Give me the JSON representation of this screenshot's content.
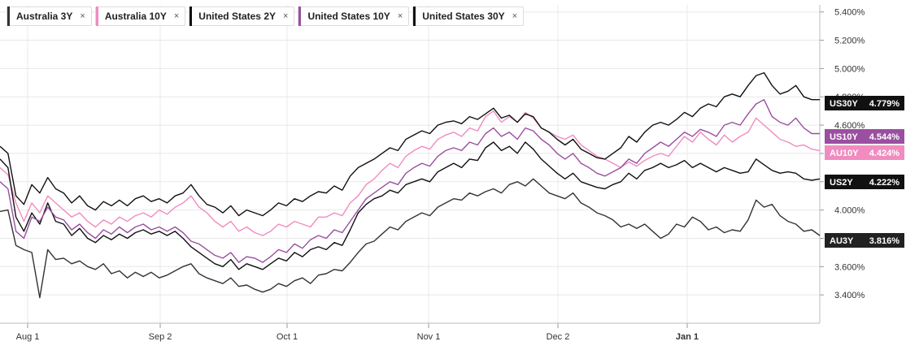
{
  "legend": [
    {
      "label": "Australia 3Y",
      "color": "#333333"
    },
    {
      "label": "Australia 10Y",
      "color": "#f08cc0"
    },
    {
      "label": "United States 2Y",
      "color": "#111111"
    },
    {
      "label": "United States 10Y",
      "color": "#9a4fa0"
    },
    {
      "label": "United States 30Y",
      "color": "#111111"
    }
  ],
  "close_glyph": "×",
  "chart_data": {
    "type": "line",
    "x_ticks": [
      "Aug 1",
      "Sep 2",
      "Oct 1",
      "Nov 1",
      "Dec 2",
      "Jan 1"
    ],
    "y_ticks": [
      "3.400%",
      "3.600%",
      "3.800%",
      "4.000%",
      "4.200%",
      "4.400%",
      "4.600%",
      "4.800%",
      "5.000%",
      "5.200%",
      "5.400%"
    ],
    "ylim": [
      3.2,
      5.45
    ],
    "grid": true,
    "axis_position": "right",
    "series": [
      {
        "name": "Australia 3Y",
        "end_tag": "AU3Y",
        "end_value": "3.816%",
        "tag_color": "#222222",
        "line_color": "#333333",
        "values": [
          3.99,
          4.0,
          3.75,
          3.72,
          3.7,
          3.38,
          3.72,
          3.65,
          3.66,
          3.62,
          3.64,
          3.6,
          3.58,
          3.62,
          3.55,
          3.57,
          3.52,
          3.56,
          3.53,
          3.56,
          3.52,
          3.54,
          3.57,
          3.6,
          3.62,
          3.55,
          3.52,
          3.5,
          3.48,
          3.52,
          3.46,
          3.47,
          3.44,
          3.42,
          3.44,
          3.48,
          3.46,
          3.5,
          3.52,
          3.48,
          3.54,
          3.55,
          3.58,
          3.57,
          3.63,
          3.7,
          3.76,
          3.78,
          3.83,
          3.88,
          3.86,
          3.92,
          3.95,
          3.98,
          3.96,
          4.02,
          4.05,
          4.08,
          4.07,
          4.12,
          4.1,
          4.13,
          4.15,
          4.12,
          4.18,
          4.2,
          4.17,
          4.22,
          4.17,
          4.12,
          4.1,
          4.08,
          4.12,
          4.05,
          4.02,
          3.98,
          3.96,
          3.93,
          3.88,
          3.9,
          3.87,
          3.9,
          3.85,
          3.8,
          3.83,
          3.9,
          3.88,
          3.95,
          3.92,
          3.86,
          3.88,
          3.84,
          3.86,
          3.85,
          3.93,
          4.07,
          4.02,
          4.04,
          3.96,
          3.92,
          3.9,
          3.85,
          3.86,
          3.82
        ]
      },
      {
        "name": "Australia 10Y",
        "end_tag": "AU10Y",
        "end_value": "4.424%",
        "tag_color": "#f08cc0",
        "line_color": "#f08cc0",
        "values": [
          4.3,
          4.25,
          4.05,
          3.92,
          4.05,
          3.98,
          4.1,
          4.05,
          4.0,
          3.95,
          3.98,
          3.92,
          3.88,
          3.93,
          3.9,
          3.95,
          3.92,
          3.96,
          3.98,
          3.95,
          4.0,
          3.97,
          4.02,
          4.05,
          4.1,
          4.02,
          3.98,
          3.92,
          3.88,
          3.92,
          3.85,
          3.88,
          3.84,
          3.82,
          3.85,
          3.9,
          3.88,
          3.92,
          3.9,
          3.88,
          3.95,
          3.95,
          3.98,
          3.96,
          4.05,
          4.1,
          4.18,
          4.22,
          4.28,
          4.33,
          4.3,
          4.38,
          4.42,
          4.45,
          4.43,
          4.5,
          4.53,
          4.55,
          4.52,
          4.58,
          4.56,
          4.66,
          4.7,
          4.62,
          4.66,
          4.62,
          4.69,
          4.65,
          4.58,
          4.55,
          4.52,
          4.5,
          4.53,
          4.46,
          4.42,
          4.38,
          4.36,
          4.33,
          4.3,
          4.34,
          4.31,
          4.35,
          4.38,
          4.4,
          4.38,
          4.45,
          4.52,
          4.48,
          4.55,
          4.5,
          4.46,
          4.53,
          4.48,
          4.52,
          4.55,
          4.65,
          4.6,
          4.55,
          4.5,
          4.48,
          4.45,
          4.46,
          4.43,
          4.42
        ]
      },
      {
        "name": "United States 2Y",
        "end_tag": "US2Y",
        "end_value": "4.222%",
        "tag_color": "#111111",
        "line_color": "#111111",
        "values": [
          4.36,
          4.3,
          3.95,
          3.85,
          3.98,
          3.9,
          4.05,
          3.92,
          3.9,
          3.82,
          3.87,
          3.8,
          3.77,
          3.82,
          3.79,
          3.83,
          3.8,
          3.84,
          3.86,
          3.83,
          3.85,
          3.82,
          3.85,
          3.8,
          3.74,
          3.7,
          3.66,
          3.62,
          3.6,
          3.65,
          3.58,
          3.62,
          3.6,
          3.58,
          3.62,
          3.66,
          3.64,
          3.7,
          3.67,
          3.72,
          3.74,
          3.72,
          3.77,
          3.75,
          3.86,
          3.98,
          4.04,
          4.08,
          4.1,
          4.14,
          4.12,
          4.18,
          4.2,
          4.22,
          4.2,
          4.27,
          4.3,
          4.33,
          4.3,
          4.36,
          4.35,
          4.44,
          4.48,
          4.42,
          4.45,
          4.4,
          4.48,
          4.43,
          4.36,
          4.31,
          4.26,
          4.22,
          4.26,
          4.2,
          4.18,
          4.16,
          4.15,
          4.18,
          4.2,
          4.26,
          4.22,
          4.28,
          4.3,
          4.33,
          4.3,
          4.32,
          4.35,
          4.3,
          4.33,
          4.3,
          4.27,
          4.3,
          4.28,
          4.26,
          4.27,
          4.36,
          4.32,
          4.28,
          4.26,
          4.27,
          4.26,
          4.22,
          4.21,
          4.22
        ]
      },
      {
        "name": "United States 10Y",
        "end_tag": "US10Y",
        "end_value": "4.544%",
        "tag_color": "#9a4fa0",
        "line_color": "#9a4fa0",
        "values": [
          4.2,
          4.15,
          3.85,
          3.8,
          3.95,
          3.92,
          4.02,
          3.95,
          3.93,
          3.86,
          3.9,
          3.84,
          3.8,
          3.86,
          3.83,
          3.88,
          3.84,
          3.88,
          3.9,
          3.86,
          3.88,
          3.85,
          3.88,
          3.84,
          3.78,
          3.76,
          3.72,
          3.68,
          3.66,
          3.7,
          3.63,
          3.67,
          3.66,
          3.63,
          3.67,
          3.72,
          3.7,
          3.76,
          3.73,
          3.79,
          3.82,
          3.8,
          3.86,
          3.84,
          3.92,
          4.0,
          4.08,
          4.12,
          4.16,
          4.2,
          4.18,
          4.26,
          4.3,
          4.33,
          4.31,
          4.38,
          4.42,
          4.44,
          4.42,
          4.48,
          4.46,
          4.54,
          4.58,
          4.52,
          4.55,
          4.5,
          4.58,
          4.56,
          4.5,
          4.46,
          4.4,
          4.36,
          4.4,
          4.33,
          4.3,
          4.26,
          4.24,
          4.27,
          4.3,
          4.36,
          4.33,
          4.4,
          4.44,
          4.48,
          4.45,
          4.5,
          4.55,
          4.52,
          4.57,
          4.55,
          4.52,
          4.6,
          4.62,
          4.6,
          4.68,
          4.75,
          4.78,
          4.66,
          4.62,
          4.6,
          4.65,
          4.58,
          4.54,
          4.54
        ]
      },
      {
        "name": "United States 30Y",
        "end_tag": "US30Y",
        "end_value": "4.779%",
        "tag_color": "#111111",
        "line_color": "#111111",
        "values": [
          4.45,
          4.4,
          4.1,
          4.04,
          4.18,
          4.12,
          4.23,
          4.15,
          4.12,
          4.05,
          4.1,
          4.03,
          4.0,
          4.06,
          4.03,
          4.07,
          4.03,
          4.08,
          4.1,
          4.06,
          4.08,
          4.05,
          4.1,
          4.12,
          4.18,
          4.1,
          4.04,
          4.02,
          3.98,
          4.03,
          3.96,
          4.0,
          3.98,
          3.96,
          4.0,
          4.05,
          4.03,
          4.08,
          4.06,
          4.1,
          4.13,
          4.12,
          4.17,
          4.14,
          4.24,
          4.3,
          4.33,
          4.36,
          4.4,
          4.44,
          4.42,
          4.5,
          4.53,
          4.56,
          4.54,
          4.6,
          4.62,
          4.63,
          4.61,
          4.66,
          4.64,
          4.68,
          4.72,
          4.65,
          4.67,
          4.62,
          4.68,
          4.66,
          4.58,
          4.55,
          4.5,
          4.46,
          4.5,
          4.43,
          4.4,
          4.37,
          4.36,
          4.4,
          4.44,
          4.52,
          4.48,
          4.55,
          4.6,
          4.62,
          4.6,
          4.64,
          4.69,
          4.66,
          4.72,
          4.75,
          4.73,
          4.8,
          4.82,
          4.8,
          4.88,
          4.95,
          4.97,
          4.88,
          4.82,
          4.84,
          4.88,
          4.8,
          4.78,
          4.78
        ]
      }
    ]
  }
}
